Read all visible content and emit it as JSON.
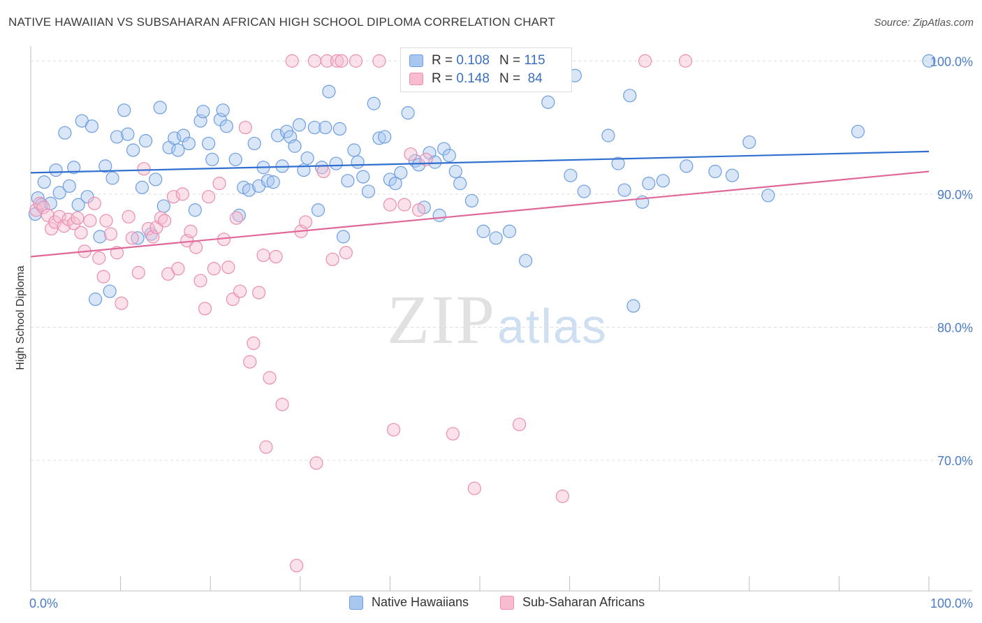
{
  "title": "NATIVE HAWAIIAN VS SUBSAHARAN AFRICAN HIGH SCHOOL DIPLOMA CORRELATION CHART",
  "source": "Source: ZipAtlas.com",
  "watermark": {
    "zip": "ZIP",
    "atlas": "atlas"
  },
  "legend": {
    "rows": [
      {
        "r_label": "R =",
        "r_value": "0.108",
        "n_label": "N =",
        "n_value": "115",
        "color": "#a9c8f0",
        "stroke": "#6d9de0"
      },
      {
        "r_label": "R =",
        "r_value": "0.148",
        "n_label": "N =",
        "n_value": "84",
        "color": "#f7bcd0",
        "stroke": "#ec8db0"
      }
    ]
  },
  "bottom_legend": [
    {
      "label": "Native Hawaiians",
      "color": "#a9c8f0",
      "stroke": "#6d9de0"
    },
    {
      "label": "Sub-Saharan Africans",
      "color": "#f7bcd0",
      "stroke": "#ec8db0"
    }
  ],
  "chart_data": {
    "type": "scatter",
    "title": "NATIVE HAWAIIAN VS SUBSAHARAN AFRICAN HIGH SCHOOL DIPLOMA CORRELATION CHART",
    "xlabel": "",
    "ylabel": "High School Diploma",
    "xlim": [
      0,
      100
    ],
    "ylim": [
      60.2,
      100.8
    ],
    "x_tick_labels": [
      "0.0%",
      "100.0%"
    ],
    "y_ticks": [
      70,
      80,
      90,
      100
    ],
    "y_tick_labels": [
      "70.0%",
      "80.0%",
      "90.0%",
      "100.0%"
    ],
    "grid": "horizontal dashed",
    "legend_placement": "top-center and bottom",
    "series": [
      {
        "name": "Native Hawaiians",
        "color": "#6d9de0",
        "trend": {
          "x": [
            0,
            100
          ],
          "y": [
            91.6,
            93.2
          ]
        },
        "points": [
          [
            0.5,
            88.5
          ],
          [
            0.8,
            89.7
          ],
          [
            1.2,
            89.2
          ],
          [
            1.5,
            90.9
          ],
          [
            2.2,
            89.3
          ],
          [
            2.8,
            91.8
          ],
          [
            3.2,
            90.1
          ],
          [
            3.8,
            94.6
          ],
          [
            4.3,
            90.6
          ],
          [
            4.8,
            92.0
          ],
          [
            5.3,
            89.2
          ],
          [
            5.7,
            95.5
          ],
          [
            6.3,
            89.8
          ],
          [
            6.8,
            95.1
          ],
          [
            7.2,
            82.1
          ],
          [
            7.7,
            86.8
          ],
          [
            8.3,
            92.1
          ],
          [
            8.8,
            82.7
          ],
          [
            9.1,
            91.2
          ],
          [
            9.6,
            94.3
          ],
          [
            10.4,
            96.3
          ],
          [
            10.8,
            94.5
          ],
          [
            11.4,
            93.3
          ],
          [
            11.9,
            86.7
          ],
          [
            12.4,
            90.5
          ],
          [
            12.8,
            94.0
          ],
          [
            13.4,
            87.0
          ],
          [
            13.9,
            91.1
          ],
          [
            14.4,
            96.5
          ],
          [
            14.8,
            89.1
          ],
          [
            15.4,
            93.5
          ],
          [
            16.0,
            94.2
          ],
          [
            16.4,
            93.3
          ],
          [
            17.0,
            94.4
          ],
          [
            17.6,
            93.8
          ],
          [
            18.3,
            88.8
          ],
          [
            18.9,
            95.5
          ],
          [
            19.2,
            96.2
          ],
          [
            19.8,
            93.8
          ],
          [
            20.2,
            92.6
          ],
          [
            21.1,
            95.6
          ],
          [
            21.4,
            96.3
          ],
          [
            21.8,
            95.1
          ],
          [
            22.8,
            92.6
          ],
          [
            23.2,
            88.4
          ],
          [
            23.7,
            90.5
          ],
          [
            24.3,
            90.3
          ],
          [
            24.9,
            93.8
          ],
          [
            25.4,
            90.6
          ],
          [
            25.9,
            92.0
          ],
          [
            26.4,
            91.0
          ],
          [
            27.0,
            90.9
          ],
          [
            27.5,
            94.4
          ],
          [
            28.0,
            92.1
          ],
          [
            28.5,
            94.7
          ],
          [
            28.9,
            94.3
          ],
          [
            29.4,
            93.6
          ],
          [
            29.9,
            95.2
          ],
          [
            30.4,
            91.8
          ],
          [
            30.8,
            92.7
          ],
          [
            31.6,
            95.0
          ],
          [
            32.0,
            88.8
          ],
          [
            32.4,
            92.0
          ],
          [
            32.8,
            95.0
          ],
          [
            33.2,
            97.7
          ],
          [
            34.0,
            92.3
          ],
          [
            34.4,
            94.9
          ],
          [
            34.8,
            86.8
          ],
          [
            35.3,
            91.0
          ],
          [
            36.0,
            93.3
          ],
          [
            36.4,
            92.4
          ],
          [
            37.0,
            91.3
          ],
          [
            37.6,
            90.2
          ],
          [
            38.2,
            96.8
          ],
          [
            38.8,
            94.2
          ],
          [
            39.4,
            94.3
          ],
          [
            40.0,
            91.1
          ],
          [
            40.6,
            90.8
          ],
          [
            41.2,
            91.6
          ],
          [
            42.0,
            96.1
          ],
          [
            42.8,
            92.5
          ],
          [
            43.2,
            92.2
          ],
          [
            43.8,
            89.0
          ],
          [
            44.4,
            93.1
          ],
          [
            45.0,
            92.4
          ],
          [
            45.5,
            88.4
          ],
          [
            46.0,
            93.4
          ],
          [
            46.6,
            92.9
          ],
          [
            47.3,
            91.7
          ],
          [
            47.8,
            90.8
          ],
          [
            49.1,
            89.5
          ],
          [
            50.4,
            87.2
          ],
          [
            51.8,
            86.7
          ],
          [
            53.3,
            87.2
          ],
          [
            55.1,
            85.0
          ],
          [
            57.6,
            96.9
          ],
          [
            59.0,
            100.0
          ],
          [
            60.1,
            91.4
          ],
          [
            60.6,
            98.9
          ],
          [
            61.6,
            90.2
          ],
          [
            64.3,
            94.4
          ],
          [
            65.4,
            92.3
          ],
          [
            66.1,
            90.3
          ],
          [
            66.7,
            97.4
          ],
          [
            67.1,
            81.6
          ],
          [
            68.1,
            89.4
          ],
          [
            68.8,
            90.8
          ],
          [
            70.4,
            91.0
          ],
          [
            73.0,
            92.1
          ],
          [
            76.2,
            91.7
          ],
          [
            78.1,
            91.4
          ],
          [
            80.0,
            93.9
          ],
          [
            82.1,
            89.9
          ],
          [
            92.1,
            94.7
          ],
          [
            100.0,
            100.0
          ]
        ]
      },
      {
        "name": "Sub-Saharan Africans",
        "color": "#ec8db0",
        "trend": {
          "x": [
            0,
            100
          ],
          "y": [
            85.3,
            91.7
          ]
        },
        "points": [
          [
            0.6,
            88.8
          ],
          [
            1.0,
            89.3
          ],
          [
            1.4,
            89.0
          ],
          [
            1.9,
            88.4
          ],
          [
            2.3,
            87.4
          ],
          [
            2.7,
            87.9
          ],
          [
            3.2,
            88.3
          ],
          [
            3.7,
            87.6
          ],
          [
            4.2,
            88.1
          ],
          [
            4.8,
            87.8
          ],
          [
            5.2,
            88.2
          ],
          [
            5.6,
            87.1
          ],
          [
            6.0,
            85.7
          ],
          [
            6.6,
            88.0
          ],
          [
            7.1,
            89.3
          ],
          [
            7.6,
            85.2
          ],
          [
            8.1,
            83.8
          ],
          [
            8.4,
            88.0
          ],
          [
            8.9,
            87.0
          ],
          [
            9.6,
            85.6
          ],
          [
            10.1,
            81.8
          ],
          [
            10.9,
            88.3
          ],
          [
            11.3,
            86.7
          ],
          [
            12.0,
            84.1
          ],
          [
            12.6,
            91.9
          ],
          [
            13.1,
            87.4
          ],
          [
            13.6,
            86.8
          ],
          [
            14.0,
            87.5
          ],
          [
            14.5,
            88.2
          ],
          [
            14.9,
            88.0
          ],
          [
            15.3,
            84.0
          ],
          [
            15.9,
            89.8
          ],
          [
            16.4,
            84.4
          ],
          [
            16.9,
            90.0
          ],
          [
            17.4,
            86.5
          ],
          [
            17.8,
            87.2
          ],
          [
            18.4,
            86.0
          ],
          [
            18.9,
            83.5
          ],
          [
            19.4,
            81.4
          ],
          [
            19.8,
            89.8
          ],
          [
            20.4,
            84.4
          ],
          [
            21.0,
            90.8
          ],
          [
            21.5,
            86.6
          ],
          [
            22.0,
            84.5
          ],
          [
            22.5,
            82.1
          ],
          [
            22.9,
            88.2
          ],
          [
            23.3,
            82.7
          ],
          [
            23.9,
            95.0
          ],
          [
            24.4,
            77.4
          ],
          [
            24.8,
            78.8
          ],
          [
            25.4,
            82.6
          ],
          [
            25.9,
            85.4
          ],
          [
            26.2,
            71.0
          ],
          [
            26.6,
            76.2
          ],
          [
            27.3,
            85.3
          ],
          [
            28.0,
            74.2
          ],
          [
            29.1,
            100.0
          ],
          [
            29.6,
            62.1
          ],
          [
            30.1,
            87.2
          ],
          [
            30.6,
            87.9
          ],
          [
            31.6,
            100.0
          ],
          [
            31.8,
            69.8
          ],
          [
            32.6,
            91.7
          ],
          [
            33.0,
            100.0
          ],
          [
            33.6,
            85.1
          ],
          [
            34.1,
            100.0
          ],
          [
            34.6,
            100.0
          ],
          [
            35.1,
            85.6
          ],
          [
            36.2,
            100.0
          ],
          [
            38.8,
            100.0
          ],
          [
            40.0,
            89.2
          ],
          [
            40.4,
            72.3
          ],
          [
            41.6,
            89.2
          ],
          [
            42.3,
            93.0
          ],
          [
            43.2,
            88.8
          ],
          [
            44.0,
            92.6
          ],
          [
            47.0,
            72.0
          ],
          [
            49.4,
            67.9
          ],
          [
            52.9,
            100.0
          ],
          [
            54.4,
            72.7
          ],
          [
            57.1,
            99.3
          ],
          [
            59.2,
            67.3
          ],
          [
            68.4,
            100.0
          ],
          [
            72.9,
            100.0
          ]
        ]
      }
    ]
  }
}
